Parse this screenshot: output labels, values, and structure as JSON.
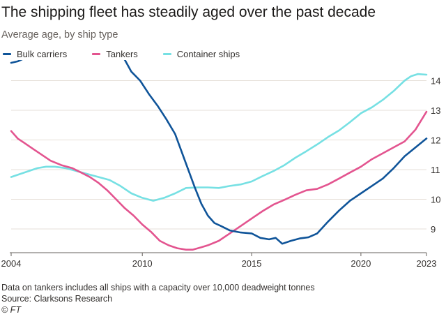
{
  "title": "The shipping fleet has steadily aged over the past decade",
  "subtitle": "Average age, by ship type",
  "footnote": "Data on tankers includes all ships with a capacity over 10,000 deadweight tonnes",
  "source": "Source: Clarksons Research",
  "credit": "© FT",
  "chart_data": {
    "type": "line",
    "title": "The shipping fleet has steadily aged over the past decade",
    "subtitle": "Average age, by ship type",
    "xlabel": "",
    "ylabel": "",
    "xlim": [
      2004,
      2023
    ],
    "ylim": [
      8.2,
      14.6
    ],
    "x_ticks": [
      2004,
      2010,
      2015,
      2020,
      2023
    ],
    "x_tick_labels": [
      "2004",
      "2010",
      "2015",
      "2020",
      "2023"
    ],
    "y_ticks": [
      9,
      10,
      11,
      12,
      13,
      14
    ],
    "y_tick_labels": [
      "9",
      "10",
      "11",
      "12",
      "13",
      "14"
    ],
    "y_axis_side": "right",
    "grid": "horizontal",
    "legend_placement": "top-left",
    "series": [
      {
        "name": "Bulk carriers",
        "color": "#0f5499",
        "x": [
          2004.0,
          2004.3,
          2004.6,
          2005.0,
          2005.5,
          2006.0,
          2006.5,
          2007.0,
          2007.5,
          2008.0,
          2008.5,
          2008.9,
          2009.2,
          2009.5,
          2009.9,
          2010.3,
          2010.7,
          2011.1,
          2011.5,
          2011.8,
          2012.1,
          2012.4,
          2012.7,
          2013.0,
          2013.3,
          2013.6,
          2014.0,
          2014.5,
          2015.0,
          2015.4,
          2015.8,
          2016.1,
          2016.4,
          2016.8,
          2017.2,
          2017.6,
          2018.0,
          2018.5,
          2019.0,
          2019.5,
          2020.0,
          2020.5,
          2021.0,
          2021.5,
          2022.0,
          2022.5,
          2023.0
        ],
        "values": [
          14.6,
          14.65,
          14.75,
          14.8,
          14.85,
          14.87,
          14.85,
          14.9,
          14.95,
          14.97,
          14.95,
          14.95,
          14.7,
          14.3,
          14.0,
          13.55,
          13.15,
          12.7,
          12.2,
          11.6,
          11.0,
          10.4,
          9.85,
          9.45,
          9.2,
          9.1,
          8.95,
          8.88,
          8.85,
          8.7,
          8.65,
          8.7,
          8.5,
          8.6,
          8.68,
          8.72,
          8.85,
          9.25,
          9.62,
          9.95,
          10.2,
          10.45,
          10.7,
          11.05,
          11.45,
          11.75,
          12.05
        ]
      },
      {
        "name": "Tankers",
        "color": "#e3548f",
        "x": [
          2004.0,
          2004.3,
          2004.6,
          2005.0,
          2005.4,
          2005.8,
          2006.3,
          2006.8,
          2007.2,
          2007.6,
          2008.0,
          2008.4,
          2008.8,
          2009.2,
          2009.6,
          2010.0,
          2010.4,
          2010.8,
          2011.2,
          2011.6,
          2012.0,
          2012.3,
          2012.7,
          2013.0,
          2013.5,
          2014.0,
          2014.5,
          2015.0,
          2015.5,
          2016.0,
          2016.5,
          2017.0,
          2017.5,
          2018.0,
          2018.5,
          2019.0,
          2019.5,
          2020.0,
          2020.5,
          2021.0,
          2021.5,
          2022.0,
          2022.5,
          2023.0
        ],
        "values": [
          12.3,
          12.05,
          11.9,
          11.7,
          11.5,
          11.3,
          11.15,
          11.05,
          10.9,
          10.75,
          10.55,
          10.3,
          10.0,
          9.7,
          9.45,
          9.15,
          8.9,
          8.6,
          8.45,
          8.35,
          8.3,
          8.3,
          8.38,
          8.45,
          8.6,
          8.85,
          9.1,
          9.35,
          9.6,
          9.82,
          9.98,
          10.15,
          10.3,
          10.35,
          10.5,
          10.7,
          10.9,
          11.1,
          11.35,
          11.55,
          11.75,
          11.95,
          12.35,
          12.95
        ]
      },
      {
        "name": "Container ships",
        "color": "#76e0e3",
        "x": [
          2004.0,
          2004.4,
          2004.8,
          2005.2,
          2005.6,
          2006.0,
          2006.5,
          2007.0,
          2007.5,
          2008.0,
          2008.5,
          2009.0,
          2009.5,
          2010.0,
          2010.5,
          2011.0,
          2011.5,
          2012.0,
          2012.5,
          2013.0,
          2013.5,
          2014.0,
          2014.5,
          2015.0,
          2015.5,
          2016.0,
          2016.5,
          2017.0,
          2017.5,
          2018.0,
          2018.5,
          2019.0,
          2019.5,
          2020.0,
          2020.5,
          2021.0,
          2021.5,
          2022.0,
          2022.3,
          2022.6,
          2023.0
        ],
        "values": [
          10.75,
          10.85,
          10.95,
          11.05,
          11.1,
          11.1,
          11.05,
          10.95,
          10.85,
          10.75,
          10.65,
          10.45,
          10.2,
          10.05,
          9.95,
          10.05,
          10.2,
          10.38,
          10.4,
          10.4,
          10.38,
          10.45,
          10.5,
          10.6,
          10.78,
          10.95,
          11.15,
          11.4,
          11.62,
          11.85,
          12.1,
          12.32,
          12.6,
          12.9,
          13.1,
          13.35,
          13.65,
          14.0,
          14.15,
          14.22,
          14.2
        ]
      }
    ]
  }
}
